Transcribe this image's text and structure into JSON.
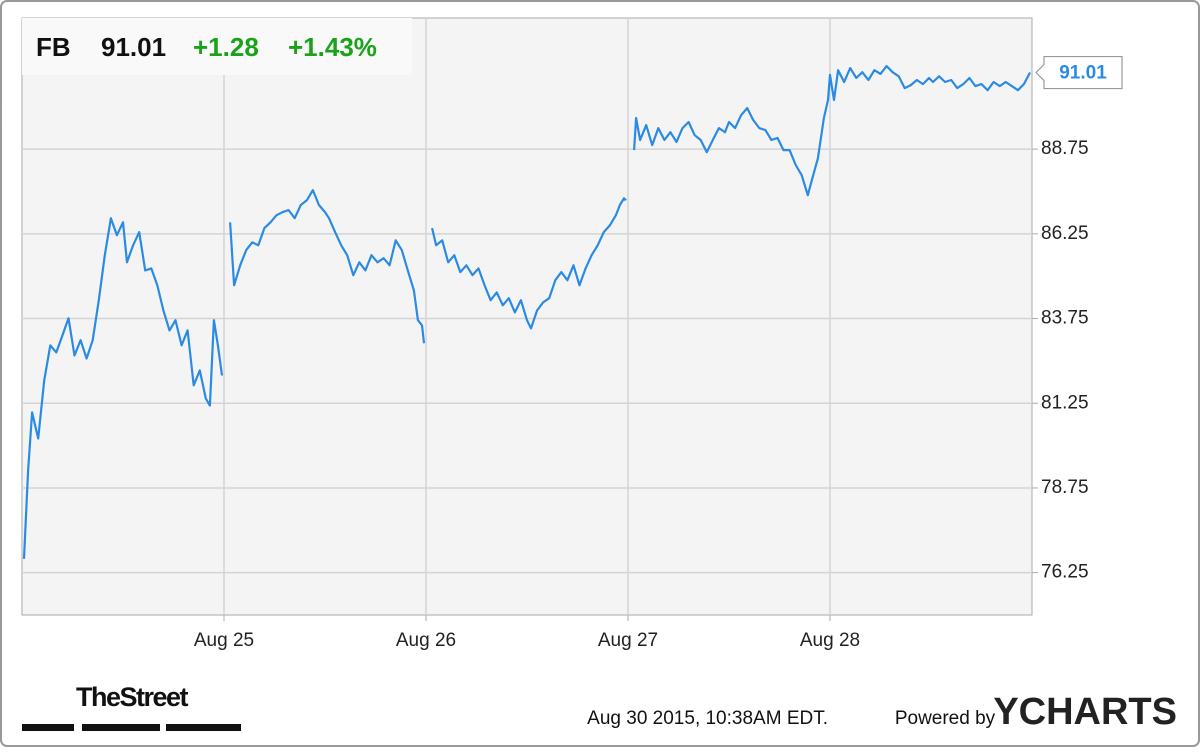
{
  "chart_data": {
    "type": "line",
    "quote": {
      "symbol": "FB",
      "price": "91.01",
      "change": "+1.28",
      "change_percent": "+1.43%"
    },
    "x": [
      0.01,
      0.03,
      0.05,
      0.08,
      0.11,
      0.14,
      0.17,
      0.2,
      0.23,
      0.26,
      0.29,
      0.32,
      0.35,
      0.38,
      0.41,
      0.44,
      0.47,
      0.5,
      0.52,
      0.55,
      0.58,
      0.61,
      0.64,
      0.67,
      0.7,
      0.73,
      0.76,
      0.79,
      0.82,
      0.85,
      0.88,
      0.91,
      0.93,
      0.95,
      0.97,
      0.99,
      1.0,
      1.03,
      1.05,
      1.08,
      1.11,
      1.14,
      1.17,
      1.2,
      1.23,
      1.26,
      1.29,
      1.32,
      1.35,
      1.38,
      1.41,
      1.44,
      1.47,
      1.5,
      1.52,
      1.55,
      1.58,
      1.61,
      1.64,
      1.67,
      1.7,
      1.73,
      1.76,
      1.79,
      1.82,
      1.85,
      1.88,
      1.91,
      1.94,
      1.96,
      1.98,
      1.99,
      2.0,
      2.03,
      2.05,
      2.08,
      2.11,
      2.14,
      2.17,
      2.2,
      2.23,
      2.26,
      2.29,
      2.32,
      2.35,
      2.38,
      2.41,
      2.44,
      2.47,
      2.5,
      2.52,
      2.55,
      2.58,
      2.61,
      2.64,
      2.67,
      2.7,
      2.73,
      2.76,
      2.79,
      2.82,
      2.85,
      2.88,
      2.91,
      2.94,
      2.96,
      2.98,
      2.99,
      3.0,
      3.03,
      3.04,
      3.06,
      3.09,
      3.12,
      3.15,
      3.18,
      3.21,
      3.24,
      3.27,
      3.3,
      3.33,
      3.36,
      3.39,
      3.42,
      3.45,
      3.48,
      3.5,
      3.53,
      3.56,
      3.59,
      3.62,
      3.65,
      3.68,
      3.71,
      3.74,
      3.77,
      3.8,
      3.83,
      3.86,
      3.89,
      3.91,
      3.94,
      3.97,
      3.99,
      4.0,
      4.02,
      4.04,
      4.07,
      4.1,
      4.13,
      4.16,
      4.19,
      4.22,
      4.25,
      4.28,
      4.31,
      4.34,
      4.37,
      4.4,
      4.43,
      4.46,
      4.49,
      4.51,
      4.54,
      4.57,
      4.6,
      4.63,
      4.66,
      4.69,
      4.72,
      4.75,
      4.78,
      4.81,
      4.84,
      4.87,
      4.9,
      4.93,
      4.96,
      4.99
    ],
    "series": [
      {
        "color": "#2b8be4",
        "values": [
          76.66,
          79.26,
          80.98,
          80.21,
          81.92,
          82.96,
          82.75,
          83.25,
          83.76,
          82.66,
          83.11,
          82.57,
          83.11,
          84.29,
          85.62,
          86.71,
          86.21,
          86.59,
          85.41,
          85.91,
          86.3,
          85.17,
          85.23,
          84.73,
          83.99,
          83.4,
          83.7,
          82.96,
          83.4,
          81.78,
          82.22,
          81.39,
          81.18,
          83.7,
          82.96,
          82.07,
          null,
          86.59,
          84.73,
          85.32,
          85.77,
          86.0,
          85.91,
          86.42,
          86.59,
          86.8,
          86.89,
          86.95,
          86.71,
          87.1,
          87.24,
          87.54,
          87.1,
          86.89,
          86.71,
          86.3,
          85.91,
          85.62,
          85.03,
          85.41,
          85.17,
          85.62,
          85.41,
          85.53,
          85.32,
          86.06,
          85.77,
          85.17,
          84.58,
          83.7,
          83.55,
          83.02,
          null,
          86.42,
          85.91,
          86.06,
          85.41,
          85.62,
          85.12,
          85.32,
          85.03,
          85.23,
          84.73,
          84.29,
          84.52,
          84.14,
          84.35,
          83.93,
          84.29,
          83.7,
          83.46,
          83.99,
          84.23,
          84.35,
          84.88,
          85.12,
          84.88,
          85.32,
          84.73,
          85.23,
          85.62,
          85.91,
          86.3,
          86.5,
          86.8,
          87.1,
          87.3,
          87.24,
          null,
          88.72,
          89.67,
          89.02,
          89.46,
          88.87,
          89.37,
          89.02,
          89.25,
          88.96,
          89.37,
          89.55,
          89.16,
          89.02,
          88.66,
          89.02,
          89.37,
          89.25,
          89.55,
          89.37,
          89.75,
          89.96,
          89.61,
          89.37,
          89.31,
          89.02,
          89.08,
          88.72,
          88.72,
          88.28,
          87.98,
          87.39,
          87.83,
          88.48,
          89.67,
          90.2,
          90.94,
          90.2,
          91.08,
          90.73,
          91.14,
          90.85,
          91.02,
          90.79,
          91.08,
          90.97,
          91.2,
          91.02,
          90.9,
          90.55,
          90.64,
          90.79,
          90.67,
          90.85,
          90.73,
          90.9,
          90.73,
          90.79,
          90.55,
          90.67,
          90.85,
          90.61,
          90.67,
          90.49,
          90.73,
          90.61,
          90.73,
          90.61,
          90.49,
          90.67,
          91.01
        ]
      }
    ],
    "xlim": [
      0,
      5
    ],
    "xticks": [
      {
        "value": 1,
        "label": "Aug 25"
      },
      {
        "value": 2,
        "label": "Aug 26"
      },
      {
        "value": 3,
        "label": "Aug 27"
      },
      {
        "value": 4,
        "label": "Aug 28"
      }
    ],
    "ylim": [
      75,
      92.62
    ],
    "yticks": [
      76.25,
      78.75,
      81.25,
      83.75,
      86.25,
      88.75
    ],
    "grid": true,
    "timestamp": "Aug 30 2015, 10:38AM EDT.",
    "powered_by": "Powered by",
    "brand": "YCHARTS",
    "source_logo": "TheStreet"
  }
}
